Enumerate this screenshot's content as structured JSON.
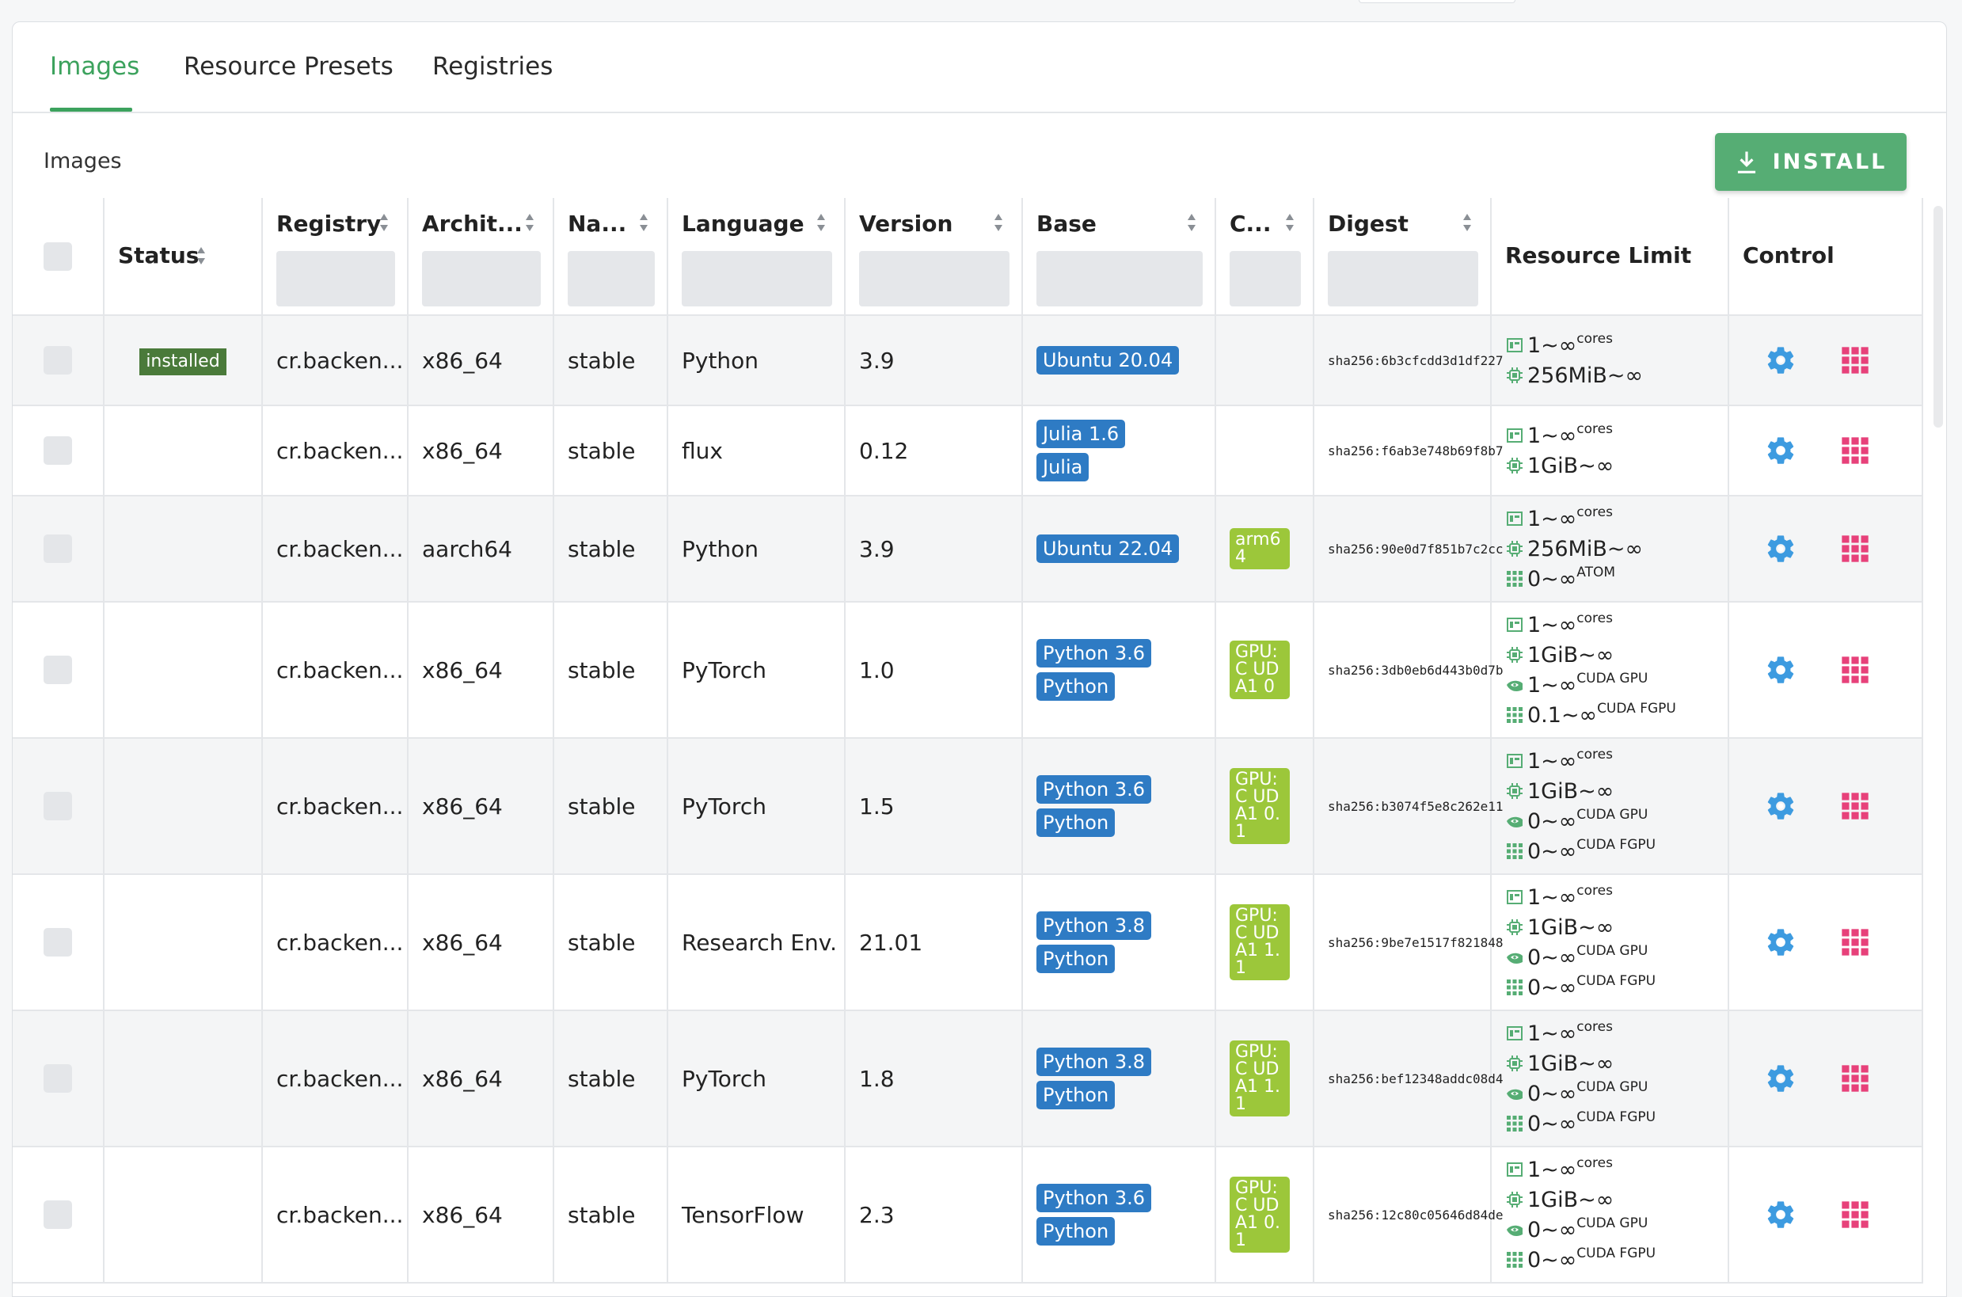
{
  "tabs": [
    "Images",
    "Resource Presets",
    "Registries"
  ],
  "section_title": "Images",
  "install_label": "INSTALL",
  "columns": {
    "status": "Status",
    "registry": "Registry",
    "architecture": "Archit...",
    "namespace": "Na...",
    "language": "Language",
    "version": "Version",
    "base": "Base",
    "constraint": "C...",
    "digest": "Digest",
    "resource_limit": "Resource Limit",
    "control": "Control"
  },
  "colors": {
    "accent": "#3ca25d",
    "base_tag": "#2e7bc4",
    "constraint_tag": "#9cc73a",
    "status_installed": "#4a7a3a",
    "settings_icon": "#3d9be0",
    "apps_icon": "#e7417a"
  },
  "rows": [
    {
      "status": "installed",
      "registry": "cr.backen...",
      "arch": "x86_64",
      "ns": "stable",
      "lang": "Python",
      "version": "3.9",
      "base": [
        "Ubuntu 20.04"
      ],
      "constraint": "",
      "digest": "sha256:6b3cfcdd3d1df227",
      "res": [
        {
          "icon": "cpu-icon",
          "val": "1~∞",
          "unit": "cores"
        },
        {
          "icon": "memory-icon",
          "val": "256MiB~∞",
          "unit": ""
        }
      ]
    },
    {
      "status": "",
      "registry": "cr.backen...",
      "arch": "x86_64",
      "ns": "stable",
      "lang": "flux",
      "version": "0.12",
      "base": [
        "Julia 1.6",
        "Julia"
      ],
      "constraint": "",
      "digest": "sha256:f6ab3e748b69f8b7",
      "res": [
        {
          "icon": "cpu-icon",
          "val": "1~∞",
          "unit": "cores"
        },
        {
          "icon": "memory-icon",
          "val": "1GiB~∞",
          "unit": ""
        }
      ]
    },
    {
      "status": "",
      "registry": "cr.backen...",
      "arch": "aarch64",
      "ns": "stable",
      "lang": "Python",
      "version": "3.9",
      "base": [
        "Ubuntu 22.04"
      ],
      "constraint": "arm64",
      "digest": "sha256:90e0d7f851b7c2cc",
      "res": [
        {
          "icon": "cpu-icon",
          "val": "1~∞",
          "unit": "cores"
        },
        {
          "icon": "memory-icon",
          "val": "256MiB~∞",
          "unit": ""
        },
        {
          "icon": "atom-icon",
          "val": "0~∞",
          "unit": "ATOM"
        }
      ]
    },
    {
      "status": "",
      "registry": "cr.backen...",
      "arch": "x86_64",
      "ns": "stable",
      "lang": "PyTorch",
      "version": "1.0",
      "base": [
        "Python 3.6",
        "Python"
      ],
      "constraint": "GPU:C UDA1 0",
      "digest": "sha256:3db0eb6d443b0d7b",
      "res": [
        {
          "icon": "cpu-icon",
          "val": "1~∞",
          "unit": "cores"
        },
        {
          "icon": "memory-icon",
          "val": "1GiB~∞",
          "unit": ""
        },
        {
          "icon": "nvidia-icon",
          "val": "1~∞",
          "unit": "CUDA GPU"
        },
        {
          "icon": "fgpu-icon",
          "val": "0.1~∞",
          "unit": "CUDA FGPU"
        }
      ]
    },
    {
      "status": "",
      "registry": "cr.backen...",
      "arch": "x86_64",
      "ns": "stable",
      "lang": "PyTorch",
      "version": "1.5",
      "base": [
        "Python 3.6",
        "Python"
      ],
      "constraint": "GPU:C UDA1 0.1",
      "digest": "sha256:b3074f5e8c262e11",
      "res": [
        {
          "icon": "cpu-icon",
          "val": "1~∞",
          "unit": "cores"
        },
        {
          "icon": "memory-icon",
          "val": "1GiB~∞",
          "unit": ""
        },
        {
          "icon": "nvidia-icon",
          "val": "0~∞",
          "unit": "CUDA GPU"
        },
        {
          "icon": "fgpu-icon",
          "val": "0~∞",
          "unit": "CUDA FGPU"
        }
      ]
    },
    {
      "status": "",
      "registry": "cr.backen...",
      "arch": "x86_64",
      "ns": "stable",
      "lang": "Research Env.",
      "version": "21.01",
      "base": [
        "Python 3.8",
        "Python"
      ],
      "constraint": "GPU:C UDA1 1.1",
      "digest": "sha256:9be7e1517f821848",
      "res": [
        {
          "icon": "cpu-icon",
          "val": "1~∞",
          "unit": "cores"
        },
        {
          "icon": "memory-icon",
          "val": "1GiB~∞",
          "unit": ""
        },
        {
          "icon": "nvidia-icon",
          "val": "0~∞",
          "unit": "CUDA GPU"
        },
        {
          "icon": "fgpu-icon",
          "val": "0~∞",
          "unit": "CUDA FGPU"
        }
      ]
    },
    {
      "status": "",
      "registry": "cr.backen...",
      "arch": "x86_64",
      "ns": "stable",
      "lang": "PyTorch",
      "version": "1.8",
      "base": [
        "Python 3.8",
        "Python"
      ],
      "constraint": "GPU:C UDA1 1.1",
      "digest": "sha256:bef12348addc08d4",
      "res": [
        {
          "icon": "cpu-icon",
          "val": "1~∞",
          "unit": "cores"
        },
        {
          "icon": "memory-icon",
          "val": "1GiB~∞",
          "unit": ""
        },
        {
          "icon": "nvidia-icon",
          "val": "0~∞",
          "unit": "CUDA GPU"
        },
        {
          "icon": "fgpu-icon",
          "val": "0~∞",
          "unit": "CUDA FGPU"
        }
      ]
    },
    {
      "status": "",
      "registry": "cr.backen...",
      "arch": "x86_64",
      "ns": "stable",
      "lang": "TensorFlow",
      "version": "2.3",
      "base": [
        "Python 3.6",
        "Python"
      ],
      "constraint": "GPU:C UDA1 0.1",
      "digest": "sha256:12c80c05646d84de",
      "res": [
        {
          "icon": "cpu-icon",
          "val": "1~∞",
          "unit": "cores"
        },
        {
          "icon": "memory-icon",
          "val": "1GiB~∞",
          "unit": ""
        },
        {
          "icon": "nvidia-icon",
          "val": "0~∞",
          "unit": "CUDA GPU"
        },
        {
          "icon": "fgpu-icon",
          "val": "0~∞",
          "unit": "CUDA FGPU"
        }
      ]
    }
  ]
}
